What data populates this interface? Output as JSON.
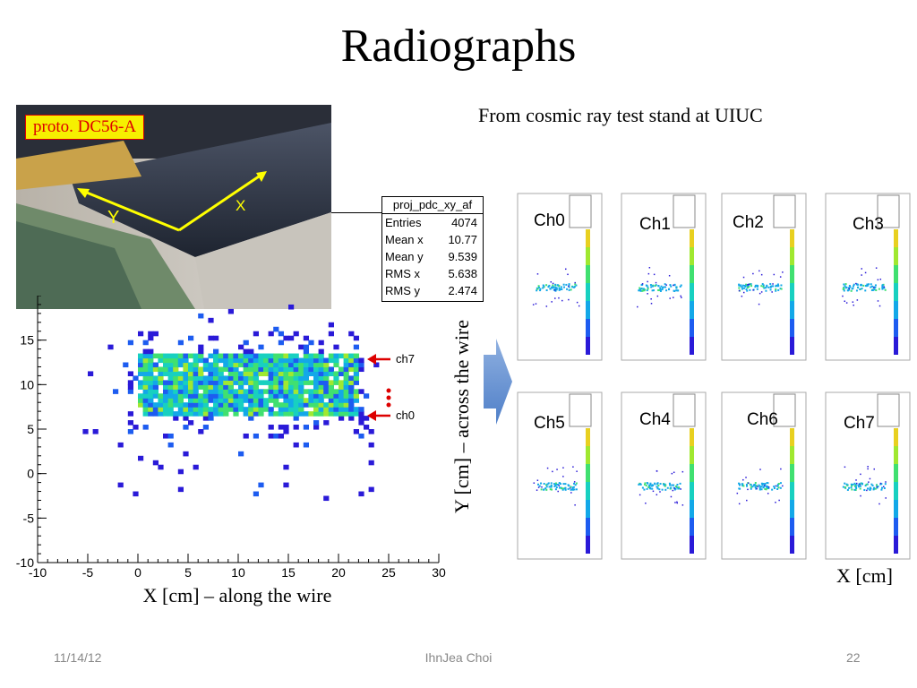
{
  "slide": {
    "title": "Radiographs",
    "subtitle": "From cosmic ray test stand at UIUC",
    "photo_label": "proto. DC56-A",
    "photo_axes": {
      "x": "X",
      "y": "Y"
    },
    "footer": {
      "date": "11/14/12",
      "author": "IhnJea Choi",
      "page": "22"
    }
  },
  "stats_box": {
    "title": "proj_pdc_xy_af",
    "rows": [
      {
        "label": "Entries",
        "value": "4074"
      },
      {
        "label": "Mean x",
        "value": "10.77"
      },
      {
        "label": "Mean y",
        "value": "9.539"
      },
      {
        "label": "RMS x",
        "value": "5.638"
      },
      {
        "label": "RMS y",
        "value": "2.474"
      }
    ]
  },
  "annotations": {
    "ch7": "ch7",
    "ch0": "ch0"
  },
  "captions": {
    "x": "X [cm] – along the wire",
    "y": "Y [cm] – across the wire",
    "grid_x": "X [cm]"
  },
  "panels": [
    {
      "label": "Ch0"
    },
    {
      "label": "Ch1"
    },
    {
      "label": "Ch2"
    },
    {
      "label": "Ch3"
    },
    {
      "label": "Ch5"
    },
    {
      "label": "Ch4"
    },
    {
      "label": "Ch6"
    },
    {
      "label": "Ch7"
    }
  ],
  "colors": {
    "photo_label_bg": "#f6f000",
    "photo_label_text": "#dd0000",
    "arrow_red": "#dd0000"
  },
  "chart_data": {
    "type": "heatmap",
    "title": "",
    "xlabel": "X [cm] – along the wire",
    "ylabel": "Y [cm] – across the wire",
    "xlim": [
      -10,
      30
    ],
    "ylim": [
      -10,
      20
    ],
    "xticks": [
      -10,
      -5,
      0,
      5,
      10,
      15,
      20,
      25,
      30
    ],
    "yticks": [
      -10,
      -5,
      0,
      5,
      10,
      15
    ],
    "core_region": {
      "x": [
        0,
        22
      ],
      "y": [
        6.5,
        13.5
      ]
    },
    "stats": {
      "entries": 4074,
      "mean_x": 10.77,
      "mean_y": 9.539,
      "rms_x": 5.638,
      "rms_y": 2.474
    }
  }
}
